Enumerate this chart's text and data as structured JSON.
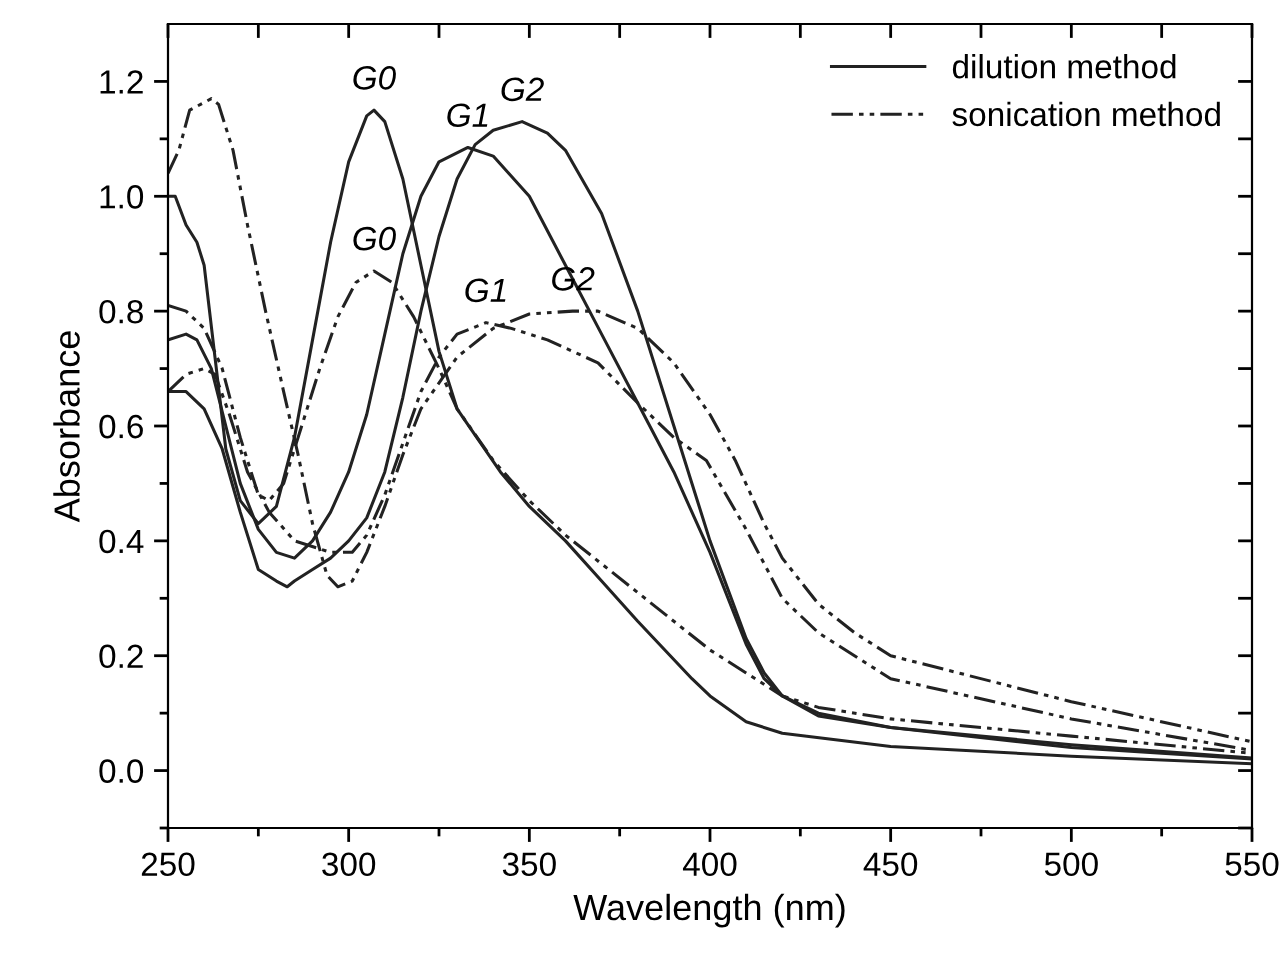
{
  "chart_data": {
    "type": "line",
    "xlabel": "Wavelength (nm)",
    "ylabel": "Absorbance",
    "xlim": [
      250,
      550
    ],
    "ylim": [
      -0.1,
      1.3
    ],
    "xticks": [
      250,
      {
        "value": 275,
        "label": null
      },
      300,
      {
        "value": 325,
        "label": null
      },
      350,
      {
        "value": 375,
        "label": null
      },
      400,
      {
        "value": 425,
        "label": null
      },
      450,
      {
        "value": 475,
        "label": null
      },
      500,
      {
        "value": 525,
        "label": null
      },
      550
    ],
    "yticks": [
      {
        "value": -0.1,
        "label": null
      },
      {
        "value": 0.0,
        "label": "0.0"
      },
      {
        "value": 0.1,
        "label": null
      },
      0.2,
      {
        "value": 0.3,
        "label": null
      },
      0.4,
      {
        "value": 0.5,
        "label": null
      },
      0.6,
      {
        "value": 0.7,
        "label": null
      },
      0.8,
      {
        "value": 0.9,
        "label": null
      },
      {
        "value": 1.0,
        "label": "1.0"
      },
      {
        "value": 1.1,
        "label": null
      },
      1.2
    ],
    "legend": "top right",
    "grid": false,
    "marker": "none",
    "series": [
      {
        "name": "dilution method",
        "color": "#222222",
        "line_style": "solid",
        "x": [
          250,
          252,
          255,
          258,
          260,
          263,
          266,
          270,
          275,
          280,
          285,
          290,
          295,
          300,
          305,
          307,
          310,
          315,
          320,
          325,
          330,
          342,
          350,
          360,
          370,
          380,
          386,
          395,
          400,
          410,
          420,
          450,
          500,
          550
        ],
        "values": [
          1.0,
          1.0,
          0.95,
          0.92,
          0.88,
          0.72,
          0.56,
          0.47,
          0.43,
          0.46,
          0.58,
          0.75,
          0.92,
          1.06,
          1.14,
          1.15,
          1.13,
          1.03,
          0.88,
          0.73,
          0.63,
          0.52,
          0.46,
          0.4,
          0.33,
          0.26,
          0.22,
          0.16,
          0.13,
          0.085,
          0.065,
          0.042,
          0.025,
          0.012
        ]
      },
      {
        "color": "#222222",
        "line_style": "solid",
        "x": [
          250,
          255,
          258,
          262,
          266,
          270,
          275,
          280,
          285,
          290,
          295,
          300,
          305,
          310,
          315,
          320,
          325,
          333,
          340,
          350,
          360,
          370,
          380,
          390,
          400,
          410,
          415,
          420,
          430,
          450,
          500,
          550
        ],
        "values": [
          0.75,
          0.76,
          0.75,
          0.7,
          0.6,
          0.5,
          0.42,
          0.38,
          0.37,
          0.4,
          0.45,
          0.52,
          0.62,
          0.76,
          0.9,
          1.0,
          1.06,
          1.085,
          1.07,
          1.0,
          0.88,
          0.76,
          0.64,
          0.52,
          0.38,
          0.22,
          0.16,
          0.13,
          0.1,
          0.075,
          0.04,
          0.02
        ]
      },
      {
        "color": "#222222",
        "line_style": "solid",
        "x": [
          250,
          255,
          260,
          265,
          270,
          275,
          280,
          283,
          285,
          290,
          295,
          300,
          305,
          310,
          315,
          320,
          325,
          330,
          335,
          340,
          348,
          355,
          360,
          370,
          380,
          390,
          395,
          400,
          410,
          415,
          420,
          430,
          450,
          500,
          550
        ],
        "values": [
          0.66,
          0.66,
          0.63,
          0.56,
          0.45,
          0.35,
          0.33,
          0.32,
          0.33,
          0.35,
          0.37,
          0.4,
          0.44,
          0.52,
          0.65,
          0.8,
          0.93,
          1.03,
          1.09,
          1.115,
          1.13,
          1.11,
          1.08,
          0.97,
          0.8,
          0.6,
          0.5,
          0.4,
          0.23,
          0.17,
          0.13,
          0.095,
          0.075,
          0.045,
          0.022
        ]
      },
      {
        "name": "sonication method",
        "color": "#222222",
        "line_style": "dashdot",
        "x": [
          250,
          255,
          260,
          265,
          270,
          275,
          278,
          282,
          287,
          292,
          297,
          302,
          307,
          312,
          318,
          325,
          330,
          340,
          350,
          360,
          370,
          380,
          390,
          400,
          410,
          420,
          430,
          450,
          500,
          550
        ],
        "values": [
          0.81,
          0.8,
          0.77,
          0.7,
          0.58,
          0.48,
          0.47,
          0.5,
          0.6,
          0.7,
          0.79,
          0.85,
          0.87,
          0.85,
          0.79,
          0.7,
          0.63,
          0.54,
          0.47,
          0.41,
          0.36,
          0.31,
          0.26,
          0.21,
          0.17,
          0.13,
          0.11,
          0.09,
          0.06,
          0.03
        ]
      },
      {
        "color": "#222222",
        "line_style": "dashdot",
        "x": [
          250,
          255,
          260,
          263,
          267,
          272,
          278,
          285,
          295,
          301,
          305,
          310,
          315,
          320,
          325,
          330,
          338,
          345,
          355,
          369,
          380,
          390,
          399,
          410,
          420,
          430,
          450,
          500,
          550
        ],
        "values": [
          0.66,
          0.69,
          0.7,
          0.69,
          0.62,
          0.52,
          0.45,
          0.4,
          0.38,
          0.38,
          0.41,
          0.48,
          0.57,
          0.66,
          0.72,
          0.76,
          0.78,
          0.77,
          0.75,
          0.71,
          0.64,
          0.58,
          0.54,
          0.42,
          0.3,
          0.24,
          0.16,
          0.09,
          0.035
        ]
      },
      {
        "color": "#222222",
        "line_style": "dashdot",
        "x": [
          250,
          253,
          256,
          262,
          264,
          268,
          272,
          277,
          282,
          286,
          290,
          294,
          297,
          301,
          305,
          310,
          315,
          320,
          330,
          340,
          350,
          362,
          369,
          380,
          390,
          400,
          407,
          415,
          420,
          430,
          440,
          450,
          500,
          550
        ],
        "values": [
          1.04,
          1.08,
          1.15,
          1.17,
          1.16,
          1.08,
          0.95,
          0.8,
          0.66,
          0.55,
          0.43,
          0.34,
          0.32,
          0.33,
          0.38,
          0.46,
          0.55,
          0.63,
          0.72,
          0.77,
          0.795,
          0.8,
          0.8,
          0.77,
          0.71,
          0.62,
          0.54,
          0.43,
          0.37,
          0.29,
          0.24,
          0.2,
          0.12,
          0.05
        ]
      }
    ],
    "annotations": [
      "G0",
      "G1",
      "G2",
      "G0",
      "G1",
      "G2"
    ]
  }
}
